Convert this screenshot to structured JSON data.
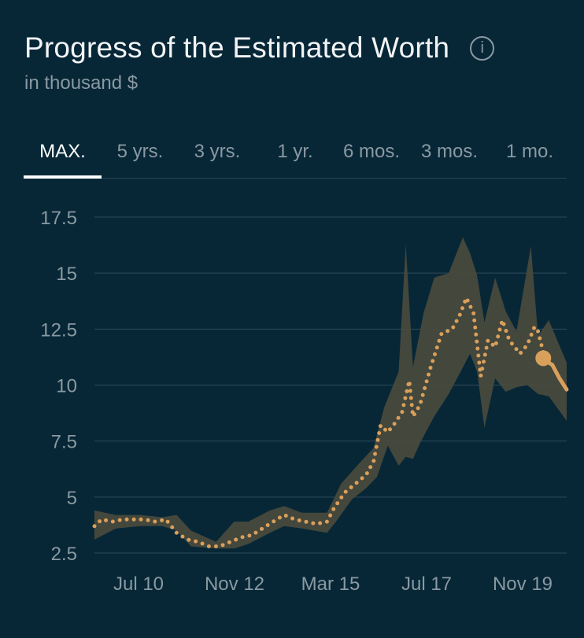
{
  "header": {
    "title": "Progress of the Estimated Worth",
    "subtitle": "in thousand $",
    "info_icon": "info-icon"
  },
  "tabs": [
    {
      "label": "MAX.",
      "active": true
    },
    {
      "label": "5 yrs.",
      "active": false
    },
    {
      "label": "3 yrs.",
      "active": false
    },
    {
      "label": "1 yr.",
      "active": false
    },
    {
      "label": "6 mos.",
      "active": false
    },
    {
      "label": "3 mos.",
      "active": false
    },
    {
      "label": "1 mo.",
      "active": false
    }
  ],
  "colors": {
    "background": "#072737",
    "line": "#d9a05b",
    "band": "#4a4a3d",
    "grid": "#2f4a58",
    "tick": "#8a99a2"
  },
  "chart_data": {
    "type": "line",
    "title": "Progress of the Estimated Worth",
    "subtitle": "in thousand $",
    "ylim": [
      2.5,
      17.5
    ],
    "yticks": [
      2.5,
      5,
      7.5,
      10,
      12.5,
      15,
      17.5
    ],
    "ytick_labels": [
      "2.5",
      "5",
      "7.5",
      "10",
      "12.5",
      "15",
      "17.5"
    ],
    "xticks": [
      "Jul 10",
      "Nov 12",
      "Mar 15",
      "Jul 17",
      "Nov 19"
    ],
    "grid": true,
    "series": [
      {
        "style": "dotted",
        "points": [
          [
            "2009-08-01",
            3.7
          ],
          [
            "2009-10-01",
            4.0
          ],
          [
            "2010-01-01",
            3.9
          ],
          [
            "2010-04-01",
            4.0
          ],
          [
            "2010-07-01",
            4.0
          ],
          [
            "2010-10-01",
            4.0
          ],
          [
            "2011-01-01",
            3.9
          ],
          [
            "2011-04-01",
            4.0
          ],
          [
            "2011-07-01",
            3.4
          ],
          [
            "2011-10-01",
            3.1
          ],
          [
            "2012-01-01",
            3.0
          ],
          [
            "2012-04-01",
            2.8
          ],
          [
            "2012-07-01",
            2.8
          ],
          [
            "2012-10-01",
            3.0
          ],
          [
            "2013-01-01",
            3.2
          ],
          [
            "2013-04-01",
            3.3
          ],
          [
            "2013-07-01",
            3.6
          ],
          [
            "2013-10-01",
            3.9
          ],
          [
            "2014-01-01",
            4.2
          ],
          [
            "2014-04-01",
            4.0
          ],
          [
            "2014-07-01",
            3.9
          ],
          [
            "2014-10-01",
            3.8
          ],
          [
            "2015-01-01",
            3.9
          ],
          [
            "2015-03-01",
            4.5
          ],
          [
            "2015-06-01",
            5.2
          ],
          [
            "2015-09-01",
            5.6
          ],
          [
            "2015-12-01",
            6.0
          ],
          [
            "2016-02-01",
            6.6
          ],
          [
            "2016-04-01",
            8.2
          ],
          [
            "2016-06-01",
            7.9
          ],
          [
            "2016-08-01",
            8.3
          ],
          [
            "2016-10-01",
            8.8
          ],
          [
            "2016-12-01",
            10.2
          ],
          [
            "2017-01-01",
            8.6
          ],
          [
            "2017-03-01",
            9.1
          ],
          [
            "2017-06-01",
            10.8
          ],
          [
            "2017-09-01",
            12.3
          ],
          [
            "2017-12-01",
            12.5
          ],
          [
            "2018-02-01",
            13.1
          ],
          [
            "2018-04-01",
            13.9
          ],
          [
            "2018-06-01",
            13.2
          ],
          [
            "2018-08-01",
            10.4
          ],
          [
            "2018-10-01",
            12.0
          ],
          [
            "2018-12-01",
            11.7
          ],
          [
            "2019-02-01",
            12.9
          ],
          [
            "2019-04-01",
            12.0
          ],
          [
            "2019-07-01",
            11.4
          ],
          [
            "2019-09-01",
            11.8
          ],
          [
            "2019-11-01",
            12.6
          ],
          [
            "2019-12-01",
            12.4
          ],
          [
            "2020-02-01",
            11.1
          ]
        ]
      },
      {
        "style": "solid",
        "points": [
          [
            "2020-02-01",
            11.1
          ],
          [
            "2020-04-01",
            10.9
          ],
          [
            "2020-06-01",
            10.3
          ],
          [
            "2020-08-01",
            9.8
          ]
        ]
      }
    ],
    "band": {
      "upper": [
        [
          "2009-08-01",
          4.4
        ],
        [
          "2010-02-01",
          4.2
        ],
        [
          "2010-09-01",
          4.2
        ],
        [
          "2011-03-01",
          4.1
        ],
        [
          "2011-07-01",
          4.2
        ],
        [
          "2011-11-01",
          3.5
        ],
        [
          "2012-06-01",
          3.0
        ],
        [
          "2012-11-01",
          3.9
        ],
        [
          "2013-03-01",
          3.9
        ],
        [
          "2013-09-01",
          4.4
        ],
        [
          "2014-01-01",
          4.6
        ],
        [
          "2014-06-01",
          4.3
        ],
        [
          "2015-01-01",
          4.3
        ],
        [
          "2015-05-01",
          5.6
        ],
        [
          "2015-10-01",
          6.5
        ],
        [
          "2016-02-01",
          7.2
        ],
        [
          "2016-05-01",
          9.0
        ],
        [
          "2016-09-01",
          10.6
        ],
        [
          "2016-11-01",
          16.3
        ],
        [
          "2017-01-01",
          10.8
        ],
        [
          "2017-04-01",
          13.2
        ],
        [
          "2017-07-01",
          14.8
        ],
        [
          "2017-11-01",
          15.0
        ],
        [
          "2018-03-01",
          16.6
        ],
        [
          "2018-05-01",
          15.9
        ],
        [
          "2018-07-01",
          14.9
        ],
        [
          "2018-09-01",
          12.8
        ],
        [
          "2018-12-01",
          14.8
        ],
        [
          "2019-03-01",
          13.3
        ],
        [
          "2019-06-01",
          12.4
        ],
        [
          "2019-10-01",
          16.2
        ],
        [
          "2019-12-01",
          12.2
        ],
        [
          "2020-03-01",
          12.9
        ],
        [
          "2020-08-01",
          11.0
        ]
      ],
      "lower": [
        [
          "2020-08-01",
          8.4
        ],
        [
          "2020-03-01",
          9.5
        ],
        [
          "2019-12-01",
          9.6
        ],
        [
          "2019-09-01",
          10.0
        ],
        [
          "2019-06-01",
          9.9
        ],
        [
          "2019-03-01",
          9.7
        ],
        [
          "2018-12-01",
          10.3
        ],
        [
          "2018-09-01",
          8.1
        ],
        [
          "2018-07-01",
          10.6
        ],
        [
          "2018-05-01",
          11.4
        ],
        [
          "2018-02-01",
          10.5
        ],
        [
          "2017-11-01",
          9.6
        ],
        [
          "2017-07-01",
          8.6
        ],
        [
          "2017-03-01",
          7.4
        ],
        [
          "2017-01-01",
          6.7
        ],
        [
          "2016-11-01",
          6.8
        ],
        [
          "2016-09-01",
          6.4
        ],
        [
          "2016-06-01",
          7.3
        ],
        [
          "2016-03-01",
          5.9
        ],
        [
          "2015-12-01",
          5.4
        ],
        [
          "2015-08-01",
          4.9
        ],
        [
          "2015-04-01",
          4.0
        ],
        [
          "2015-01-01",
          3.4
        ],
        [
          "2014-06-01",
          3.6
        ],
        [
          "2014-01-01",
          3.7
        ],
        [
          "2013-09-01",
          3.4
        ],
        [
          "2013-03-01",
          2.9
        ],
        [
          "2012-11-01",
          2.7
        ],
        [
          "2012-06-01",
          2.7
        ],
        [
          "2011-11-01",
          2.8
        ],
        [
          "2011-07-01",
          3.5
        ],
        [
          "2011-03-01",
          3.7
        ],
        [
          "2010-09-01",
          3.7
        ],
        [
          "2010-02-01",
          3.6
        ],
        [
          "2009-08-01",
          3.1
        ]
      ]
    },
    "highlight": [
      "2020-01-15",
      11.2
    ]
  }
}
